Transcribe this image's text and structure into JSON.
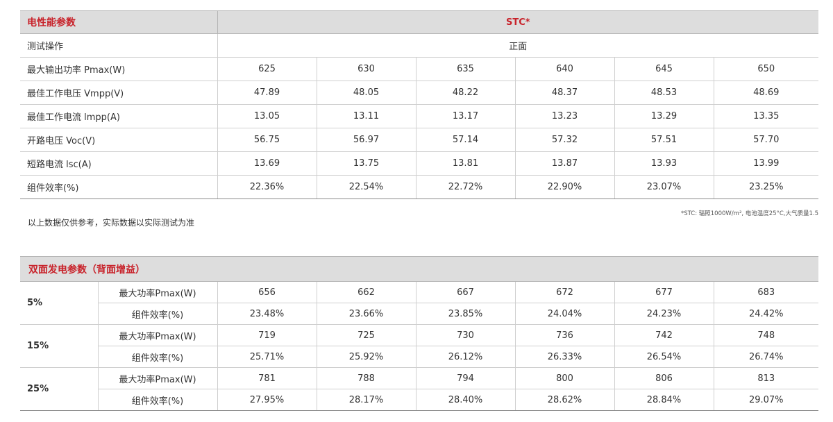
{
  "electrical": {
    "title": "电性能参数",
    "stc_header": "STC*",
    "test_label": "测试操作",
    "test_value": "正面",
    "rows": [
      {
        "label": "最大输出功率 Pmax(W)",
        "values": [
          "625",
          "630",
          "635",
          "640",
          "645",
          "650"
        ]
      },
      {
        "label": "最佳工作电压 Vmpp(V)",
        "values": [
          "47.89",
          "48.05",
          "48.22",
          "48.37",
          "48.53",
          "48.69"
        ]
      },
      {
        "label": "最佳工作电流 lmpp(A)",
        "values": [
          "13.05",
          "13.11",
          "13.17",
          "13.23",
          "13.29",
          "13.35"
        ]
      },
      {
        "label": "开路电压 Voc(V)",
        "values": [
          "56.75",
          "56.97",
          "57.14",
          "57.32",
          "57.51",
          "57.70"
        ]
      },
      {
        "label": "短路电流 lsc(A)",
        "values": [
          "13.69",
          "13.75",
          "13.81",
          "13.87",
          "13.93",
          "13.99"
        ]
      },
      {
        "label": "组件效率(%)",
        "values": [
          "22.36%",
          "22.54%",
          "22.72%",
          "22.90%",
          "23.07%",
          "23.25%"
        ]
      }
    ]
  },
  "notes": {
    "left": "以上数据仅供参考，实际数据以实际测试为准",
    "right": "*STC: 辐照1000W/m², 电池温度25°C,大气质量1.5"
  },
  "bifacial": {
    "title": "双面发电参数（背面增益）",
    "groups": [
      {
        "gain": "5%",
        "rows": [
          {
            "label": "最大功率Pmax(W)",
            "values": [
              "656",
              "662",
              "667",
              "672",
              "677",
              "683"
            ]
          },
          {
            "label": "组件效率(%)",
            "values": [
              "23.48%",
              "23.66%",
              "23.85%",
              "24.04%",
              "24.23%",
              "24.42%"
            ]
          }
        ]
      },
      {
        "gain": "15%",
        "rows": [
          {
            "label": "最大功率Pmax(W)",
            "values": [
              "719",
              "725",
              "730",
              "736",
              "742",
              "748"
            ]
          },
          {
            "label": "组件效率(%)",
            "values": [
              "25.71%",
              "25.92%",
              "26.12%",
              "26.33%",
              "26.54%",
              "26.74%"
            ]
          }
        ]
      },
      {
        "gain": "25%",
        "rows": [
          {
            "label": "最大功率Pmax(W)",
            "values": [
              "781",
              "788",
              "794",
              "800",
              "806",
              "813"
            ]
          },
          {
            "label": "组件效率(%)",
            "values": [
              "27.95%",
              "28.17%",
              "28.40%",
              "28.62%",
              "28.84%",
              "29.07%"
            ]
          }
        ]
      }
    ]
  },
  "colors": {
    "accent": "#c8222a",
    "header_bg": "#dddddd"
  }
}
